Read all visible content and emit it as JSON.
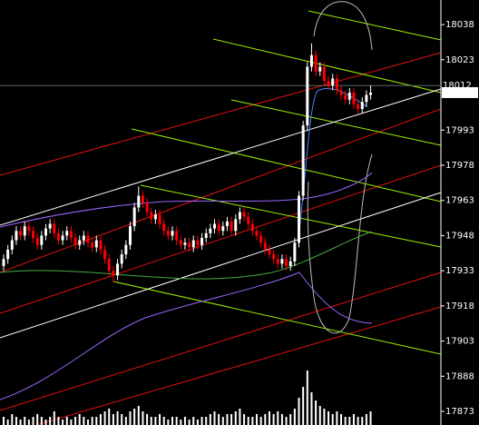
{
  "chart_data": {
    "type": "candlestick",
    "ylim": [
      17867.2,
      18048.5
    ],
    "yticks": [
      17873,
      17888,
      17903,
      17918,
      17933,
      17948,
      17963,
      17978,
      17993,
      18023,
      18038
    ],
    "price_line": 18012,
    "last_price": 18009,
    "up_color": "#ffffff",
    "down_color": "#ff0000",
    "volume_color": "#ffffff",
    "open": [
      17935,
      17938,
      17942,
      17946,
      17950,
      17948,
      17952,
      17950,
      17947,
      17944,
      17948,
      17951,
      17953,
      17949,
      17946,
      17948,
      17950,
      17947,
      17944,
      17946,
      17948,
      17945,
      17943,
      17946,
      17942,
      17938,
      17933,
      17931,
      17936,
      17940,
      17944,
      17952,
      17960,
      17965,
      17962,
      17958,
      17955,
      17957,
      17953,
      17950,
      17948,
      17950,
      17946,
      17944,
      17945,
      17943,
      17946,
      17944,
      17947,
      17949,
      17951,
      17953,
      17950,
      17952,
      17954,
      17950,
      17955,
      17958,
      17956,
      17953,
      17950,
      17948,
      17945,
      17942,
      17940,
      17938,
      17936,
      17938,
      17935,
      17937,
      17945,
      17965,
      17995,
      18020,
      18025,
      18018,
      18020,
      18014,
      18012,
      18015,
      18010,
      18008,
      18006,
      18009,
      18004,
      18002,
      18005,
      18008
    ],
    "high": [
      17940,
      17944,
      17948,
      17952,
      17952,
      17954,
      17954,
      17952,
      17949,
      17950,
      17953,
      17955,
      17955,
      17951,
      17950,
      17952,
      17952,
      17949,
      17948,
      17950,
      17950,
      17947,
      17948,
      17948,
      17944,
      17940,
      17935,
      17938,
      17942,
      17946,
      17954,
      17962,
      17969,
      17967,
      17964,
      17960,
      17959,
      17959,
      17955,
      17952,
      17952,
      17952,
      17948,
      17947,
      17947,
      17948,
      17948,
      17949,
      17951,
      17953,
      17955,
      17955,
      17954,
      17956,
      17956,
      17957,
      17960,
      17960,
      17958,
      17955,
      17952,
      17950,
      17947,
      17944,
      17942,
      17940,
      17940,
      17940,
      17939,
      17947,
      17967,
      17997,
      18022,
      18030,
      18027,
      18022,
      18022,
      18016,
      18017,
      18017,
      18012,
      18010,
      18011,
      18011,
      18006,
      18007,
      18010,
      18012
    ],
    "low": [
      17933,
      17936,
      17940,
      17944,
      17946,
      17946,
      17948,
      17945,
      17942,
      17942,
      17946,
      17949,
      17947,
      17944,
      17944,
      17946,
      17945,
      17942,
      17942,
      17944,
      17943,
      17941,
      17941,
      17940,
      17936,
      17931,
      17928,
      17929,
      17934,
      17938,
      17942,
      17950,
      17958,
      17960,
      17956,
      17953,
      17953,
      17951,
      17948,
      17946,
      17946,
      17944,
      17942,
      17942,
      17941,
      17941,
      17942,
      17942,
      17945,
      17947,
      17949,
      17948,
      17948,
      17950,
      17948,
      17948,
      17953,
      17954,
      17951,
      17948,
      17946,
      17943,
      17940,
      17938,
      17936,
      17934,
      17934,
      17933,
      17933,
      17935,
      17943,
      17963,
      17993,
      18018,
      18016,
      18016,
      18012,
      18010,
      18010,
      18008,
      18006,
      18004,
      18004,
      18002,
      18000,
      18000,
      18003,
      18006
    ],
    "close": [
      17938,
      17942,
      17946,
      17950,
      17948,
      17952,
      17950,
      17947,
      17944,
      17948,
      17951,
      17953,
      17949,
      17946,
      17948,
      17950,
      17947,
      17944,
      17946,
      17948,
      17945,
      17943,
      17946,
      17942,
      17938,
      17933,
      17931,
      17936,
      17940,
      17944,
      17952,
      17960,
      17965,
      17962,
      17958,
      17955,
      17957,
      17953,
      17950,
      17948,
      17950,
      17946,
      17944,
      17945,
      17943,
      17946,
      17944,
      17947,
      17949,
      17951,
      17953,
      17950,
      17952,
      17954,
      17950,
      17955,
      17958,
      17956,
      17953,
      17950,
      17948,
      17945,
      17942,
      17940,
      17938,
      17936,
      17938,
      17935,
      17937,
      17945,
      17965,
      17995,
      18020,
      18025,
      18018,
      18020,
      18014,
      18012,
      18015,
      18010,
      18008,
      18006,
      18009,
      18004,
      18002,
      18005,
      18008,
      18009
    ],
    "volume": [
      3,
      2,
      4,
      3,
      2,
      3,
      2,
      3,
      4,
      3,
      2,
      3,
      5,
      3,
      2,
      3,
      2,
      3,
      4,
      3,
      2,
      3,
      3,
      4,
      5,
      6,
      4,
      5,
      4,
      3,
      5,
      6,
      7,
      5,
      4,
      3,
      3,
      4,
      3,
      2,
      3,
      3,
      2,
      3,
      2,
      3,
      2,
      3,
      3,
      4,
      5,
      4,
      3,
      4,
      4,
      5,
      6,
      4,
      3,
      3,
      4,
      3,
      4,
      5,
      4,
      5,
      4,
      3,
      4,
      6,
      10,
      14,
      20,
      12,
      9,
      7,
      6,
      5,
      4,
      5,
      4,
      3,
      3,
      4,
      3,
      3,
      4,
      5
    ]
  }
}
